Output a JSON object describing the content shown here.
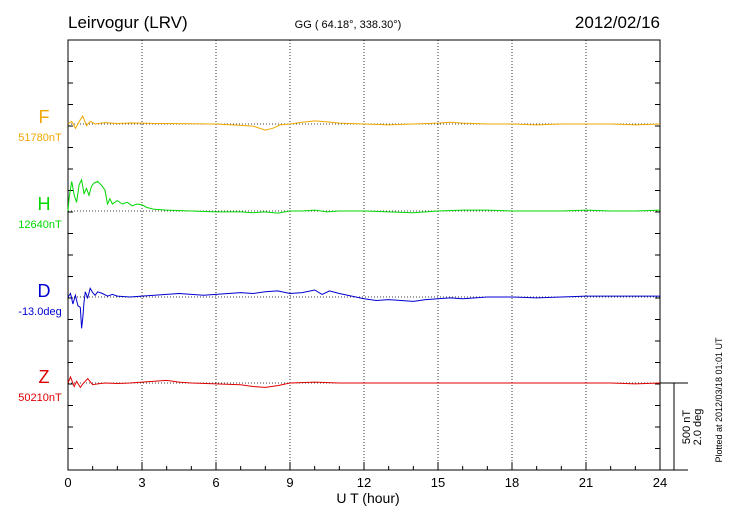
{
  "header": {
    "station": "Leirvogur (LRV)",
    "coords": "GG ( 64.18°, 338.30°)",
    "date": "2012/02/16"
  },
  "footer": {
    "plotted": "Plotted at 2012/03/18 01:01 UT"
  },
  "scale": {
    "nT": "500 nT",
    "deg": "2.0 deg",
    "nT_value": 500,
    "deg_value": 2.0
  },
  "chart_data": {
    "type": "line",
    "xlabel": "U T (hour)",
    "xlim": [
      0,
      24
    ],
    "xticks": [
      0,
      3,
      6,
      9,
      12,
      15,
      18,
      21,
      24
    ],
    "grid": "vertical dotted at 3-hour intervals",
    "series": [
      {
        "name": "F",
        "baseline_label": "51780nT",
        "color": "#f0a800",
        "points": [
          [
            0,
            0
          ],
          [
            0.15,
            15
          ],
          [
            0.3,
            -25
          ],
          [
            0.5,
            25
          ],
          [
            0.6,
            45
          ],
          [
            0.75,
            -10
          ],
          [
            0.9,
            15
          ],
          [
            1.1,
            0
          ],
          [
            1.5,
            8
          ],
          [
            2,
            3
          ],
          [
            2.5,
            6
          ],
          [
            3,
            5
          ],
          [
            3.5,
            3
          ],
          [
            4,
            3
          ],
          [
            5,
            1
          ],
          [
            6,
            0
          ],
          [
            7,
            -8
          ],
          [
            7.5,
            -12
          ],
          [
            8,
            -35
          ],
          [
            8.3,
            -25
          ],
          [
            8.6,
            -5
          ],
          [
            9,
            0
          ],
          [
            9.5,
            10
          ],
          [
            10,
            18
          ],
          [
            10.5,
            12
          ],
          [
            11,
            5
          ],
          [
            12,
            0
          ],
          [
            13,
            -5
          ],
          [
            14,
            0
          ],
          [
            15,
            5
          ],
          [
            15.5,
            10
          ],
          [
            16,
            5
          ],
          [
            17,
            0
          ],
          [
            18,
            0
          ],
          [
            19,
            -5
          ],
          [
            20,
            0
          ],
          [
            21,
            0
          ],
          [
            22,
            0
          ],
          [
            23,
            -5
          ],
          [
            24,
            0
          ]
        ]
      },
      {
        "name": "H",
        "baseline_label": "12640nT",
        "color": "#00d800",
        "points": [
          [
            0,
            0
          ],
          [
            0.05,
            80
          ],
          [
            0.15,
            170
          ],
          [
            0.25,
            90
          ],
          [
            0.35,
            50
          ],
          [
            0.45,
            150
          ],
          [
            0.55,
            180
          ],
          [
            0.65,
            100
          ],
          [
            0.75,
            130
          ],
          [
            0.85,
            90
          ],
          [
            0.95,
            140
          ],
          [
            1.05,
            160
          ],
          [
            1.2,
            170
          ],
          [
            1.35,
            150
          ],
          [
            1.5,
            120
          ],
          [
            1.6,
            40
          ],
          [
            1.7,
            70
          ],
          [
            1.8,
            40
          ],
          [
            2,
            60
          ],
          [
            2.2,
            40
          ],
          [
            2.4,
            50
          ],
          [
            2.6,
            30
          ],
          [
            2.8,
            40
          ],
          [
            3,
            35
          ],
          [
            3.2,
            20
          ],
          [
            3.5,
            10
          ],
          [
            4,
            5
          ],
          [
            5,
            0
          ],
          [
            6,
            -5
          ],
          [
            7,
            -5
          ],
          [
            7.5,
            -10
          ],
          [
            8,
            -5
          ],
          [
            8.5,
            -12
          ],
          [
            9,
            0
          ],
          [
            9.5,
            0
          ],
          [
            10,
            5
          ],
          [
            10.5,
            -5
          ],
          [
            11,
            0
          ],
          [
            12,
            0
          ],
          [
            13,
            -5
          ],
          [
            14,
            -10
          ],
          [
            15,
            0
          ],
          [
            16,
            5
          ],
          [
            17,
            5
          ],
          [
            18,
            0
          ],
          [
            19,
            0
          ],
          [
            20,
            0
          ],
          [
            21,
            5
          ],
          [
            22,
            0
          ],
          [
            23,
            0
          ],
          [
            24,
            5
          ]
        ]
      },
      {
        "name": "D",
        "baseline_label": "-13.0deg",
        "color": "#0000d0",
        "points": [
          [
            0,
            0
          ],
          [
            0.1,
            20
          ],
          [
            0.2,
            -40
          ],
          [
            0.3,
            10
          ],
          [
            0.4,
            -50
          ],
          [
            0.5,
            -60
          ],
          [
            0.55,
            -180
          ],
          [
            0.6,
            -120
          ],
          [
            0.65,
            -30
          ],
          [
            0.7,
            30
          ],
          [
            0.8,
            -5
          ],
          [
            0.9,
            50
          ],
          [
            1,
            25
          ],
          [
            1.1,
            10
          ],
          [
            1.2,
            30
          ],
          [
            1.4,
            20
          ],
          [
            1.6,
            5
          ],
          [
            1.8,
            15
          ],
          [
            2,
            5
          ],
          [
            2.5,
            0
          ],
          [
            3,
            5
          ],
          [
            3.5,
            10
          ],
          [
            4,
            15
          ],
          [
            4.5,
            20
          ],
          [
            5,
            15
          ],
          [
            5.5,
            10
          ],
          [
            6,
            15
          ],
          [
            6.5,
            20
          ],
          [
            7,
            25
          ],
          [
            7.5,
            20
          ],
          [
            8,
            30
          ],
          [
            8.5,
            35
          ],
          [
            9,
            20
          ],
          [
            9.5,
            25
          ],
          [
            10,
            40
          ],
          [
            10.3,
            15
          ],
          [
            10.6,
            35
          ],
          [
            11,
            20
          ],
          [
            11.5,
            5
          ],
          [
            12,
            -10
          ],
          [
            12.5,
            -20
          ],
          [
            13,
            -15
          ],
          [
            13.5,
            -20
          ],
          [
            14,
            -25
          ],
          [
            14.5,
            -15
          ],
          [
            15,
            -10
          ],
          [
            15.5,
            -5
          ],
          [
            16,
            -10
          ],
          [
            16.5,
            -5
          ],
          [
            17,
            0
          ],
          [
            18,
            0
          ],
          [
            19,
            -5
          ],
          [
            20,
            0
          ],
          [
            21,
            5
          ],
          [
            22,
            5
          ],
          [
            23,
            5
          ],
          [
            24,
            5
          ]
        ]
      },
      {
        "name": "Z",
        "baseline_label": "50210nT",
        "color": "#e00000",
        "points": [
          [
            0,
            0
          ],
          [
            0.1,
            35
          ],
          [
            0.25,
            -20
          ],
          [
            0.35,
            10
          ],
          [
            0.5,
            -25
          ],
          [
            0.6,
            -5
          ],
          [
            0.7,
            10
          ],
          [
            0.8,
            25
          ],
          [
            1,
            -10
          ],
          [
            1.2,
            -5
          ],
          [
            1.5,
            0
          ],
          [
            2,
            -3
          ],
          [
            2.5,
            0
          ],
          [
            3,
            5
          ],
          [
            3.5,
            10
          ],
          [
            4,
            15
          ],
          [
            4.5,
            5
          ],
          [
            5,
            0
          ],
          [
            6,
            -5
          ],
          [
            7,
            -10
          ],
          [
            7.5,
            -20
          ],
          [
            8,
            -25
          ],
          [
            8.5,
            -15
          ],
          [
            9,
            0
          ],
          [
            10,
            5
          ],
          [
            11,
            0
          ],
          [
            12,
            0
          ],
          [
            13,
            0
          ],
          [
            14,
            0
          ],
          [
            15,
            0
          ],
          [
            16,
            0
          ],
          [
            17,
            0
          ],
          [
            18,
            0
          ],
          [
            19,
            0
          ],
          [
            20,
            0
          ],
          [
            21,
            0
          ],
          [
            22,
            0
          ],
          [
            23,
            -5
          ],
          [
            24,
            0
          ]
        ]
      }
    ]
  }
}
